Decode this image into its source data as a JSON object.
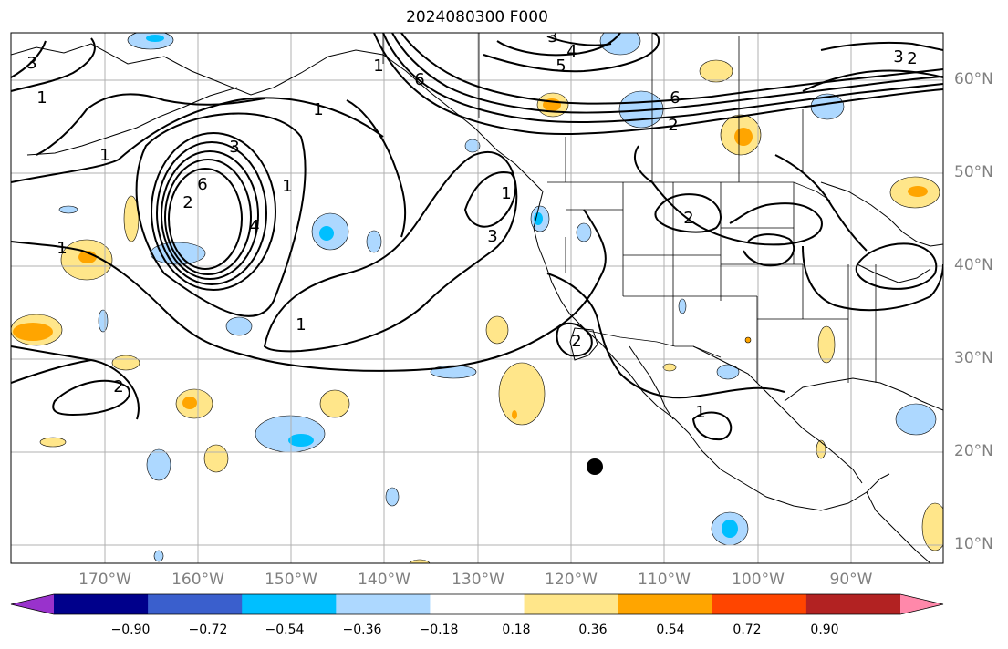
{
  "title": "2024080300 F000",
  "lat_labels": [
    "60°N",
    "50°N",
    "40°N",
    "30°N",
    "20°N",
    "10°N"
  ],
  "lon_labels": [
    "170°W",
    "160°W",
    "150°W",
    "140°W",
    "130°W",
    "120°W",
    "110°W",
    "100°W",
    "90°W"
  ],
  "colorbar": {
    "ticks": [
      "−0.90",
      "−0.72",
      "−0.54",
      "−0.36",
      "−0.18",
      "0.18",
      "0.36",
      "0.54",
      "0.72",
      "0.90"
    ],
    "colors": [
      "#9932cc",
      "#00008b",
      "#3a5fcd",
      "#00bfff",
      "#add8ff",
      "#ffffff",
      "#ffe68a",
      "#ffa500",
      "#ff4500",
      "#b22222",
      "#ff88aa"
    ]
  },
  "contour_labels": [
    "3",
    "1",
    "1",
    "1",
    "3",
    "6",
    "1",
    "4",
    "3",
    "1",
    "2",
    "2",
    "3",
    "4",
    "5",
    "6",
    "6",
    "2",
    "2",
    "1",
    "2",
    "2",
    "1",
    "1",
    "3",
    "1"
  ]
}
